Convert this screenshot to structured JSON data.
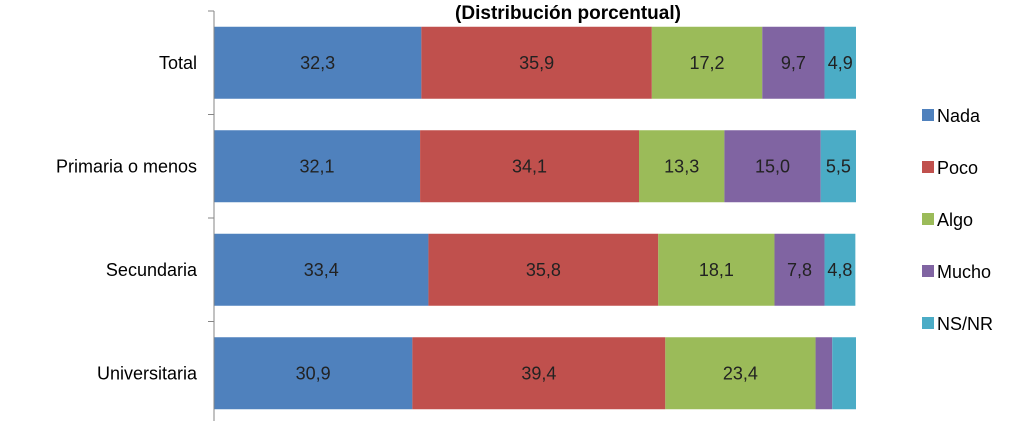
{
  "chart_data": {
    "type": "bar",
    "orientation": "horizontal",
    "stacked": true,
    "title": "(Distribución porcentual)",
    "categories": [
      "Total",
      "Primaria o menos",
      "Secundaria",
      "Universitaria"
    ],
    "series": [
      {
        "name": "Nada",
        "color": "#4F81BD",
        "values": [
          32.3,
          32.1,
          33.4,
          30.9
        ],
        "labels": [
          "32,3",
          "32,1",
          "33,4",
          "30,9"
        ]
      },
      {
        "name": "Poco",
        "color": "#C0504D",
        "values": [
          35.9,
          34.1,
          35.8,
          39.4
        ],
        "labels": [
          "35,9",
          "34,1",
          "35,8",
          "39,4"
        ]
      },
      {
        "name": "Algo",
        "color": "#9BBB59",
        "values": [
          17.2,
          13.3,
          18.1,
          23.4
        ],
        "labels": [
          "17,2",
          "13,3",
          "18,1",
          "23,4"
        ]
      },
      {
        "name": "Mucho",
        "color": "#8064A2",
        "values": [
          9.7,
          15.0,
          7.8,
          2.6
        ],
        "labels": [
          "9,7",
          "15,0",
          "7,8",
          ""
        ]
      },
      {
        "name": "NS/NR",
        "color": "#4BACC6",
        "values": [
          4.9,
          5.5,
          4.8,
          3.7
        ],
        "labels": [
          "4,9",
          "5,5",
          "4,8",
          ""
        ]
      }
    ],
    "xlim": [
      0,
      100
    ],
    "grid": false,
    "legend_position": "right"
  }
}
